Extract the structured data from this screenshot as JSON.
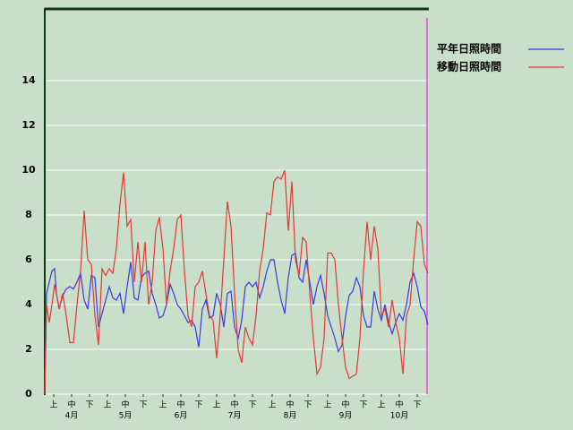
{
  "chart_data": {
    "type": "line",
    "x": [
      0,
      1,
      2.5,
      4,
      5.5,
      6.5,
      8,
      10,
      12,
      14,
      16,
      18,
      20,
      22,
      24,
      26,
      28,
      30,
      32,
      34,
      36,
      38,
      40,
      42,
      44,
      46,
      48,
      50,
      52,
      54,
      56,
      58,
      60,
      62,
      64,
      66,
      68,
      70,
      72,
      74,
      76,
      78,
      80,
      82,
      84,
      86,
      88,
      90,
      92,
      94,
      96,
      98,
      100,
      102,
      104,
      106,
      108,
      110,
      112,
      114,
      116,
      118,
      120,
      122,
      124,
      126,
      128,
      130,
      132,
      134,
      136,
      138,
      140,
      142,
      144,
      146,
      148,
      150,
      152,
      154,
      156,
      158,
      160,
      162,
      164,
      166,
      168,
      170,
      172,
      174,
      176,
      178,
      180,
      182,
      184,
      186,
      188,
      190,
      192,
      194,
      196,
      198,
      200,
      202,
      204,
      206,
      208,
      210,
      212,
      214
    ],
    "series": [
      {
        "name": "平年日照時間",
        "color": "#3a3ae0",
        "values": [
          0,
          4.5,
          5.0,
          5.5,
          5.6,
          4.5,
          3.8,
          4.4,
          4.7,
          4.8,
          4.7,
          5.0,
          5.4,
          4.2,
          3.8,
          5.3,
          5.2,
          3.0,
          3.6,
          4.2,
          4.8,
          4.3,
          4.2,
          4.5,
          3.6,
          4.8,
          5.9,
          4.3,
          4.2,
          5.2,
          5.4,
          5.5,
          4.5,
          4.0,
          3.4,
          3.5,
          4.0,
          4.9,
          4.5,
          4.0,
          3.8,
          3.5,
          3.2,
          3.3,
          3.0,
          2.1,
          3.8,
          4.2,
          3.4,
          3.5,
          4.5,
          4.0,
          3.0,
          4.5,
          4.6,
          3.0,
          2.5,
          3.3,
          4.8,
          5.0,
          4.8,
          5.0,
          4.3,
          4.8,
          5.5,
          6.0,
          6.0,
          5.0,
          4.2,
          3.6,
          5.2,
          6.2,
          6.3,
          5.2,
          5.0,
          6.0,
          5.0,
          4.0,
          4.8,
          5.3,
          4.5,
          3.5,
          3.0,
          2.5,
          1.9,
          2.2,
          3.5,
          4.4,
          4.6,
          5.2,
          4.8,
          3.5,
          3.0,
          3.0,
          4.6,
          3.8,
          3.3,
          4.0,
          3.2,
          2.7,
          3.2,
          3.6,
          3.3,
          4.0,
          5.0,
          5.4,
          4.8,
          3.9,
          3.7,
          3.1
        ]
      },
      {
        "name": "移動日照時間",
        "color": "#e03a3a",
        "values": [
          0,
          4.0,
          3.2,
          4.0,
          4.9,
          4.5,
          3.8,
          4.5,
          3.5,
          2.3,
          2.3,
          4.0,
          5.5,
          8.2,
          6.0,
          5.8,
          3.5,
          2.2,
          5.6,
          5.3,
          5.6,
          5.4,
          6.5,
          8.5,
          9.9,
          7.5,
          7.8,
          5.0,
          6.8,
          5.0,
          6.8,
          4.0,
          5.0,
          7.3,
          7.9,
          6.5,
          4.0,
          5.5,
          6.5,
          7.8,
          8.0,
          5.5,
          3.5,
          3.0,
          4.8,
          5.0,
          5.5,
          4.5,
          3.5,
          3.3,
          1.6,
          3.5,
          6.0,
          8.6,
          7.5,
          4.5,
          2.0,
          1.4,
          3.0,
          2.5,
          2.2,
          3.5,
          5.5,
          6.5,
          8.1,
          8.0,
          9.5,
          9.7,
          9.6,
          10.0,
          7.3,
          9.5,
          6.0,
          5.3,
          7.0,
          6.8,
          4.5,
          2.5,
          0.9,
          1.2,
          2.5,
          6.3,
          6.3,
          6.0,
          4.0,
          2.5,
          1.2,
          0.7,
          0.8,
          0.9,
          2.5,
          5.5,
          7.7,
          6.0,
          7.5,
          6.5,
          3.5,
          3.8,
          3.0,
          4.2,
          3.2,
          2.5,
          0.9,
          3.5,
          4.0,
          6.0,
          7.7,
          7.5,
          5.8,
          5.4
        ]
      }
    ],
    "xlim": [
      0,
      214
    ],
    "ylim": [
      0,
      17.2
    ],
    "yticks": [
      0,
      2,
      4,
      6,
      8,
      10,
      12,
      14
    ],
    "grid": true,
    "xticks": [
      {
        "value": 5,
        "label": "上"
      },
      {
        "value": 15,
        "label": "中"
      },
      {
        "value": 25,
        "label": "下"
      },
      {
        "value": 35,
        "label": "上"
      },
      {
        "value": 45,
        "label": "中"
      },
      {
        "value": 55,
        "label": "下"
      },
      {
        "value": 66,
        "label": "上"
      },
      {
        "value": 76,
        "label": "中"
      },
      {
        "value": 86,
        "label": "下"
      },
      {
        "value": 96,
        "label": "上"
      },
      {
        "value": 106,
        "label": "中"
      },
      {
        "value": 116,
        "label": "下"
      },
      {
        "value": 127,
        "label": "上"
      },
      {
        "value": 137,
        "label": "中"
      },
      {
        "value": 147,
        "label": "下"
      },
      {
        "value": 158,
        "label": "上"
      },
      {
        "value": 168,
        "label": "中"
      },
      {
        "value": 178,
        "label": "下"
      },
      {
        "value": 188,
        "label": "上"
      },
      {
        "value": 198,
        "label": "中"
      },
      {
        "value": 208,
        "label": "下"
      }
    ],
    "month_labels": [
      {
        "value": 15,
        "label": "4月"
      },
      {
        "value": 45,
        "label": "5月"
      },
      {
        "value": 76,
        "label": "6月"
      },
      {
        "value": 106,
        "label": "7月"
      },
      {
        "value": 137,
        "label": "8月"
      },
      {
        "value": 168,
        "label": "9月"
      },
      {
        "value": 198,
        "label": "10月"
      }
    ]
  }
}
